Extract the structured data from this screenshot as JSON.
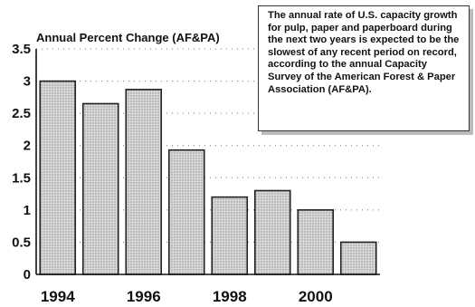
{
  "chart_data": {
    "type": "bar",
    "title": "Annual Percent Change (AF&PA)",
    "x": [
      1994,
      1995,
      1996,
      1997,
      1998,
      1999,
      2000,
      2001
    ],
    "values": [
      3.0,
      2.65,
      2.87,
      1.93,
      1.2,
      1.3,
      1.0,
      0.5
    ],
    "xticks": [
      "1994",
      "1996",
      "1998",
      "2000"
    ],
    "yticks": [
      "0",
      "0.5",
      "1",
      "1.5",
      "2",
      "2.5",
      "3",
      "3.5"
    ],
    "ylim": [
      0,
      3.5
    ],
    "grid": true,
    "annotation": "The annual rate of U.S. capacity growth for pulp, paper and paperboard during the next two years is expected to be the slowest of any recent period on record, according to the annual Capacity Survey of the American Forest & Paper Association (AF&PA)."
  }
}
